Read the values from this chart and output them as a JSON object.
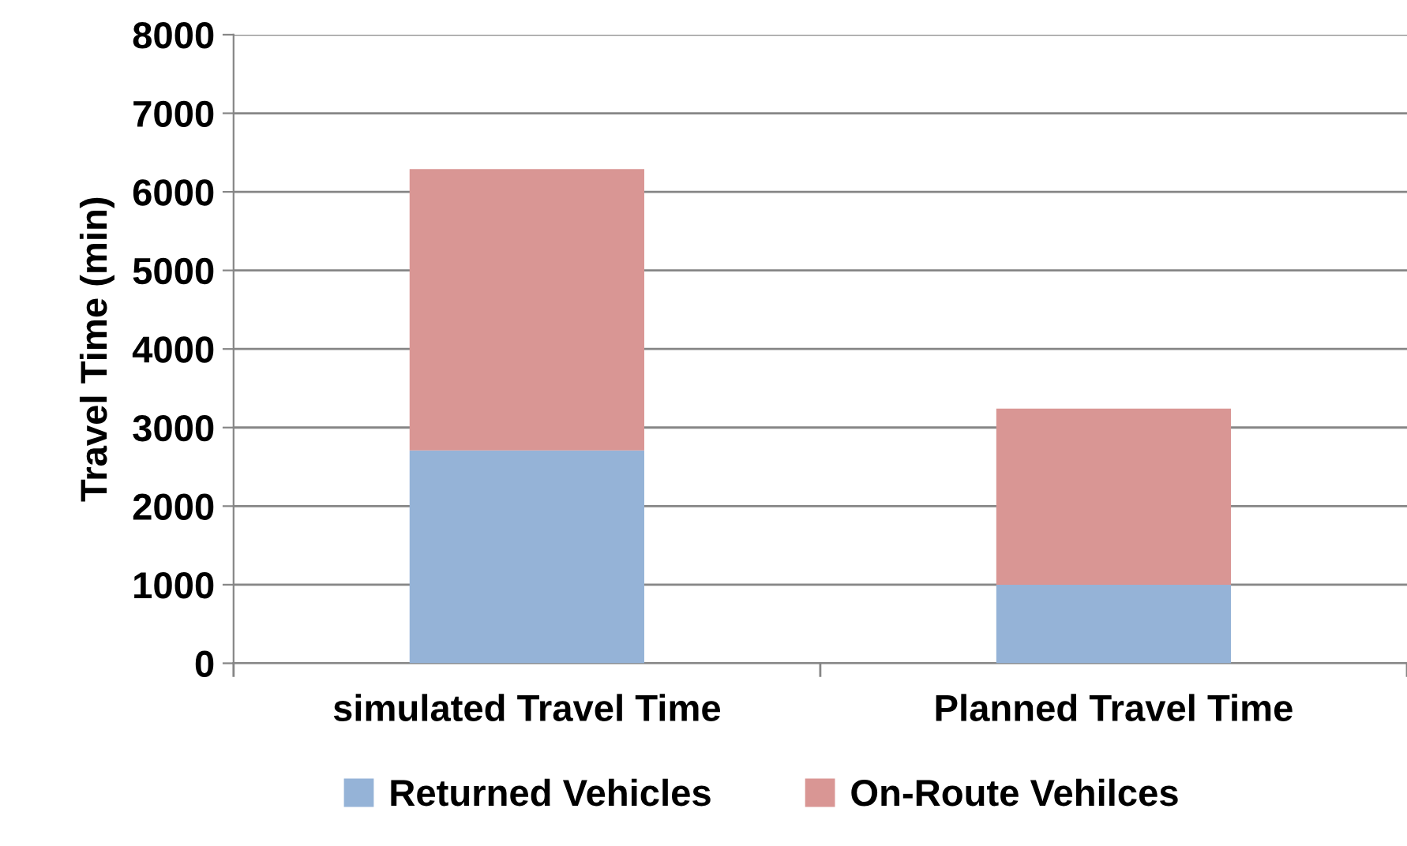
{
  "chart_data": {
    "type": "bar",
    "stacked": true,
    "ylabel": "Travel Time (min)",
    "categories": [
      "simulated Travel Time",
      "Planned Travel Time"
    ],
    "series": [
      {
        "name": "Returned Vehicles",
        "color": "#95b3d7",
        "values": [
          2710,
          1000
        ]
      },
      {
        "name": "On-Route Vehilces",
        "color": "#d99694",
        "values": [
          3580,
          2240
        ]
      }
    ],
    "ylim": [
      0,
      8000
    ],
    "yticks": [
      0,
      1000,
      2000,
      3000,
      4000,
      5000,
      6000,
      7000,
      8000
    ],
    "grid": "y",
    "legend": "bottom"
  }
}
